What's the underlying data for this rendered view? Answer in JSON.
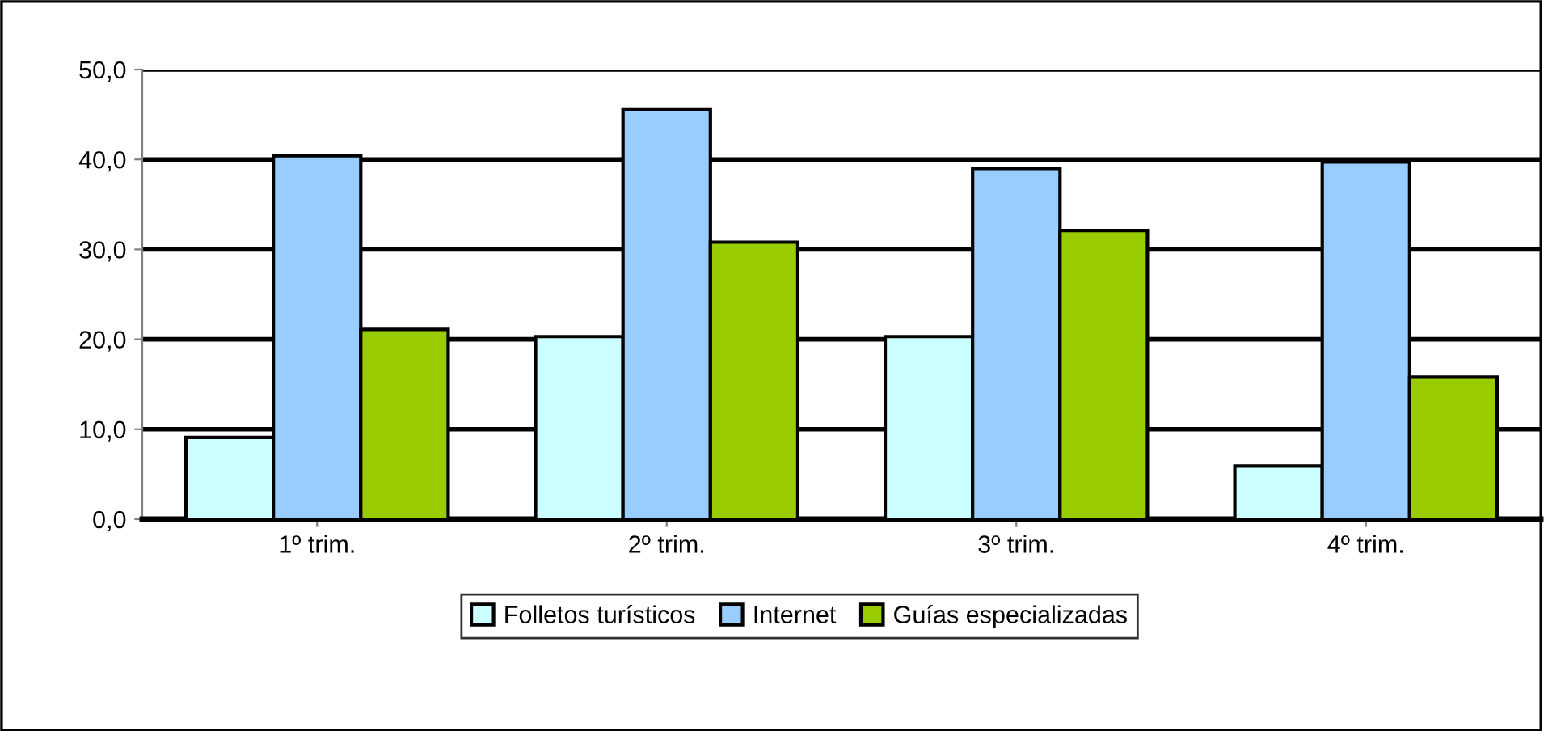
{
  "chart_data": {
    "type": "bar",
    "categories": [
      "1º trim.",
      "2º trim.",
      "3º trim.",
      "4º trim."
    ],
    "series": [
      {
        "name": "Folletos turísticos",
        "color": "#ccffff",
        "values": [
          9.1,
          20.3,
          20.3,
          5.9
        ]
      },
      {
        "name": "Internet",
        "color": "#99ccff",
        "values": [
          40.4,
          45.6,
          39.0,
          39.7
        ]
      },
      {
        "name": "Guías especializadas",
        "color": "#99cc00",
        "values": [
          21.1,
          30.8,
          32.1,
          15.8
        ]
      }
    ],
    "ylim": [
      0,
      50
    ],
    "yticks": [
      {
        "value": 0,
        "label": "0,0"
      },
      {
        "value": 10,
        "label": "10,0"
      },
      {
        "value": 20,
        "label": "20,0"
      },
      {
        "value": 30,
        "label": "30,0"
      },
      {
        "value": 40,
        "label": "40,0"
      },
      {
        "value": 50,
        "label": "50,0"
      }
    ],
    "grid": "y",
    "legend": "bottom"
  }
}
